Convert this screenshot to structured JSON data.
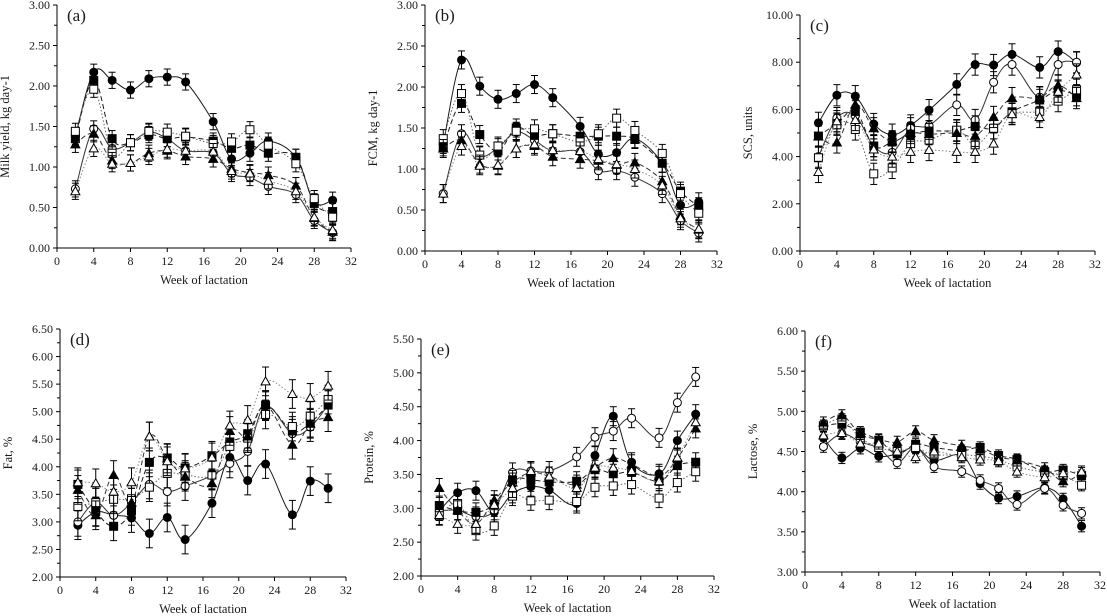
{
  "chart_data": [
    {
      "type": "line",
      "panel_label": "(a)",
      "title": "",
      "xlabel": "Week of lactation",
      "ylabel": "Milk yield, kg day-1",
      "xlim": [
        0,
        32
      ],
      "ylim": [
        0,
        3
      ],
      "xticks": [
        "0",
        "4",
        "8",
        "12",
        "16",
        "20",
        "24",
        "28",
        "32"
      ],
      "yticks": [
        "0.00",
        "0.50",
        "1.00",
        "1.50",
        "2.00",
        "2.50",
        "3.00"
      ],
      "x": [
        2,
        4,
        6,
        8,
        10,
        12,
        14,
        17,
        19,
        21,
        23,
        26,
        28,
        30
      ],
      "series": [
        {
          "name": "filled-circle",
          "values": [
            1.38,
            2.17,
            2.07,
            1.95,
            2.09,
            2.11,
            2.05,
            1.56,
            1.1,
            1.17,
            1.32,
            1.12,
            0.57,
            0.59
          ],
          "error": 0.1
        },
        {
          "name": "open-circle",
          "values": [
            0.73,
            1.47,
            1.23,
            1.3,
            1.43,
            1.35,
            1.2,
            1.17,
            0.92,
            0.87,
            0.76,
            0.66,
            0.34,
            0.19
          ],
          "error": 0.1
        },
        {
          "name": "filled-square",
          "values": [
            1.35,
            2.07,
            1.35,
            1.3,
            1.4,
            1.35,
            1.37,
            1.32,
            1.23,
            1.27,
            1.17,
            1.12,
            0.55,
            0.45
          ],
          "error": 0.1
        },
        {
          "name": "open-square",
          "values": [
            1.44,
            1.96,
            1.17,
            1.3,
            1.44,
            1.43,
            1.38,
            1.29,
            1.31,
            1.46,
            1.27,
            1.04,
            0.61,
            0.38
          ],
          "error": 0.1
        },
        {
          "name": "filled-triangle",
          "values": [
            1.28,
            1.41,
            1.08,
            1.05,
            1.17,
            1.2,
            1.13,
            1.1,
            0.98,
            0.93,
            0.9,
            0.77,
            0.37,
            0.2
          ],
          "error": 0.1
        },
        {
          "name": "open-triangle",
          "values": [
            0.7,
            1.23,
            1.04,
            1.05,
            1.13,
            1.22,
            1.2,
            1.19,
            0.95,
            0.92,
            0.83,
            0.7,
            0.38,
            0.22
          ],
          "error": 0.1
        }
      ]
    },
    {
      "type": "line",
      "panel_label": "(b)",
      "title": "",
      "xlabel": "Week of lactation",
      "ylabel": "FCM, kg day-1",
      "xlim": [
        0,
        32
      ],
      "ylim": [
        0,
        3
      ],
      "xticks": [
        "0",
        "4",
        "8",
        "12",
        "16",
        "20",
        "24",
        "28",
        "32"
      ],
      "yticks": [
        "0.00",
        "0.50",
        "1.00",
        "1.50",
        "2.00",
        "2.50",
        "3.00"
      ],
      "x": [
        2,
        4,
        6,
        8,
        10,
        12,
        14,
        17,
        19,
        21,
        23,
        26,
        28,
        30
      ],
      "series": [
        {
          "name": "filled-circle",
          "values": [
            1.3,
            2.33,
            2.01,
            1.85,
            1.92,
            2.03,
            1.87,
            1.52,
            1.18,
            1.2,
            1.37,
            1.07,
            0.56,
            0.6
          ],
          "error": 0.11
        },
        {
          "name": "open-circle",
          "values": [
            0.7,
            1.43,
            1.16,
            1.26,
            1.45,
            1.35,
            1.22,
            1.21,
            0.98,
            0.98,
            0.9,
            0.7,
            0.37,
            0.22
          ],
          "error": 0.11
        },
        {
          "name": "filled-square",
          "values": [
            1.27,
            1.8,
            1.42,
            1.22,
            1.5,
            1.41,
            1.43,
            1.4,
            1.4,
            1.4,
            1.36,
            1.07,
            0.73,
            0.54
          ],
          "error": 0.11
        },
        {
          "name": "open-square",
          "values": [
            1.37,
            1.92,
            1.17,
            1.28,
            1.46,
            1.49,
            1.43,
            1.33,
            1.43,
            1.62,
            1.47,
            1.19,
            0.7,
            0.46
          ],
          "error": 0.11
        },
        {
          "name": "filled-triangle",
          "values": [
            1.25,
            1.35,
            1.06,
            1.04,
            1.25,
            1.28,
            1.15,
            1.12,
            1.1,
            1.05,
            1.08,
            0.85,
            0.43,
            0.26
          ],
          "error": 0.11
        },
        {
          "name": "open-triangle",
          "values": [
            0.7,
            1.28,
            1.04,
            1.05,
            1.25,
            1.3,
            1.23,
            1.22,
            1.12,
            1.06,
            1.0,
            0.8,
            0.4,
            0.27
          ],
          "error": 0.11
        }
      ]
    },
    {
      "type": "line",
      "panel_label": "(c)",
      "title": "",
      "xlabel": "Week of lactation",
      "ylabel": "SCS, units",
      "xlim": [
        0,
        32
      ],
      "ylim": [
        0,
        10
      ],
      "xticks": [
        "0",
        "4",
        "8",
        "12",
        "16",
        "20",
        "24",
        "28",
        "32"
      ],
      "yticks": [
        "0.00",
        "2.00",
        "4.00",
        "6.00",
        "8.00",
        "10.00"
      ],
      "x": [
        2,
        4,
        6,
        8,
        10,
        12,
        14,
        17,
        19,
        21,
        23,
        26,
        28,
        30
      ],
      "series": [
        {
          "name": "filled-circle",
          "values": [
            5.43,
            6.6,
            6.56,
            5.38,
            4.93,
            5.32,
            5.97,
            7.06,
            7.9,
            7.88,
            8.33,
            7.78,
            8.45,
            7.98
          ],
          "error": 0.45
        },
        {
          "name": "open-circle",
          "values": [
            4.0,
            5.63,
            5.73,
            4.44,
            4.18,
            5.2,
            5.32,
            6.19,
            5.55,
            7.15,
            7.9,
            6.52,
            7.9,
            8.0
          ],
          "error": 0.45
        },
        {
          "name": "filled-square",
          "values": [
            4.87,
            5.4,
            5.92,
            4.45,
            4.62,
            4.95,
            5.08,
            5.1,
            5.28,
            5.2,
            5.9,
            6.4,
            6.8,
            6.6
          ],
          "error": 0.45
        },
        {
          "name": "open-square",
          "values": [
            3.95,
            5.35,
            5.15,
            3.27,
            3.52,
            4.55,
            4.7,
            5.12,
            4.5,
            5.2,
            5.82,
            5.92,
            6.35,
            6.83
          ],
          "error": 0.45
        },
        {
          "name": "filled-triangle",
          "values": [
            4.85,
            4.6,
            6.2,
            5.2,
            4.65,
            5.0,
            4.95,
            5.0,
            4.88,
            5.68,
            6.48,
            6.5,
            7.02,
            6.48
          ],
          "error": 0.45
        },
        {
          "name": "open-triangle",
          "values": [
            3.35,
            5.5,
            5.55,
            4.3,
            4.0,
            4.2,
            4.28,
            4.2,
            4.2,
            4.55,
            5.8,
            5.68,
            6.75,
            7.48
          ],
          "error": 0.45
        }
      ]
    },
    {
      "type": "line",
      "panel_label": "(d)",
      "title": "",
      "xlabel": "Week of lactation",
      "ylabel": "Fat, %",
      "xlim": [
        0,
        32
      ],
      "ylim": [
        2,
        6.5
      ],
      "xticks": [
        "0",
        "4",
        "8",
        "12",
        "16",
        "20",
        "24",
        "28",
        "32"
      ],
      "yticks": [
        "2.00",
        "2.50",
        "3.00",
        "3.50",
        "4.00",
        "4.50",
        "5.00",
        "5.50",
        "6.00",
        "6.50"
      ],
      "x": [
        2,
        4,
        6,
        8,
        10,
        12,
        14,
        17,
        19,
        21,
        23,
        26,
        28,
        30
      ],
      "series": [
        {
          "name": "filled-circle",
          "values": [
            2.94,
            3.18,
            3.12,
            3.07,
            2.79,
            3.08,
            2.68,
            3.34,
            4.17,
            3.75,
            4.05,
            3.13,
            3.74,
            3.61
          ],
          "error": 0.26
        },
        {
          "name": "open-circle",
          "values": [
            3.0,
            3.35,
            3.12,
            3.35,
            3.68,
            3.55,
            3.65,
            3.84,
            4.06,
            4.28,
            5.1,
            4.6,
            4.72,
            5.12
          ],
          "error": 0.26
        },
        {
          "name": "filled-square",
          "values": [
            3.68,
            3.19,
            2.92,
            3.2,
            4.08,
            4.16,
            3.98,
            4.2,
            4.45,
            4.6,
            5.12,
            4.65,
            4.8,
            5.12
          ],
          "error": 0.26
        },
        {
          "name": "open-square",
          "values": [
            3.28,
            3.35,
            3.41,
            3.42,
            3.63,
            3.88,
            3.85,
            3.85,
            4.37,
            4.52,
            4.95,
            4.73,
            4.92,
            5.22
          ],
          "error": 0.26
        },
        {
          "name": "filled-triangle",
          "values": [
            3.58,
            3.12,
            3.85,
            3.35,
            4.55,
            4.15,
            3.82,
            3.7,
            4.65,
            4.55,
            5.12,
            4.4,
            4.78,
            4.9
          ],
          "error": 0.26
        },
        {
          "name": "open-triangle",
          "values": [
            3.72,
            3.7,
            3.55,
            3.72,
            4.55,
            4.1,
            3.97,
            4.17,
            4.75,
            4.85,
            5.55,
            5.32,
            5.25,
            5.47
          ],
          "error": 0.26
        }
      ]
    },
    {
      "type": "line",
      "panel_label": "(e)",
      "title": "",
      "xlabel": "Week of lactation",
      "ylabel": "Protein, %",
      "xlim": [
        0,
        32
      ],
      "ylim": [
        2,
        5.5
      ],
      "xticks": [
        "0",
        "4",
        "8",
        "12",
        "16",
        "20",
        "24",
        "28",
        "32"
      ],
      "yticks": [
        "2.00",
        "2.50",
        "3.00",
        "3.50",
        "4.00",
        "4.50",
        "5.00",
        "5.50"
      ],
      "x": [
        2,
        4,
        6,
        8,
        10,
        12,
        14,
        17,
        19,
        21,
        23,
        26,
        28,
        30
      ],
      "series": [
        {
          "name": "filled-circle",
          "values": [
            2.96,
            3.23,
            3.26,
            2.94,
            3.22,
            3.32,
            3.27,
            3.07,
            3.78,
            4.36,
            3.68,
            3.51,
            4.0,
            4.39
          ],
          "error": 0.14
        },
        {
          "name": "open-circle",
          "values": [
            2.96,
            2.97,
            2.88,
            2.97,
            3.53,
            3.55,
            3.55,
            3.76,
            4.05,
            4.14,
            4.33,
            4.04,
            4.56,
            4.94
          ],
          "error": 0.14
        },
        {
          "name": "filled-square",
          "values": [
            3.04,
            2.97,
            2.94,
            3.06,
            3.42,
            3.42,
            3.39,
            3.4,
            3.57,
            3.51,
            3.53,
            3.4,
            3.63,
            3.68
          ],
          "error": 0.14
        },
        {
          "name": "open-square",
          "values": [
            2.89,
            3.07,
            2.67,
            2.74,
            3.18,
            3.11,
            3.12,
            3.1,
            3.31,
            3.33,
            3.35,
            3.15,
            3.38,
            3.54
          ],
          "error": 0.14
        },
        {
          "name": "filled-triangle",
          "values": [
            3.3,
            2.97,
            2.77,
            3.12,
            3.38,
            3.53,
            3.47,
            3.35,
            3.6,
            3.74,
            3.65,
            3.48,
            3.74,
            4.18
          ],
          "error": 0.14
        },
        {
          "name": "open-triangle",
          "values": [
            2.9,
            2.77,
            2.77,
            3.05,
            3.3,
            3.55,
            3.47,
            3.3,
            3.6,
            3.6,
            3.55,
            3.4,
            3.75,
            4.27
          ],
          "error": 0.14
        }
      ]
    },
    {
      "type": "line",
      "panel_label": "(f)",
      "title": "",
      "xlabel": "Week of lactation",
      "ylabel": "Lactose, %",
      "xlim": [
        0,
        32
      ],
      "ylim": [
        3,
        6
      ],
      "xticks": [
        "0",
        "4",
        "8",
        "12",
        "16",
        "20",
        "24",
        "28",
        "32"
      ],
      "yticks": [
        "3.00",
        "3.50",
        "4.00",
        "4.50",
        "5.00",
        "5.50",
        "6.00"
      ],
      "x": [
        2,
        4,
        6,
        8,
        10,
        12,
        14,
        17,
        19,
        21,
        23,
        26,
        28,
        30
      ],
      "series": [
        {
          "name": "filled-circle",
          "values": [
            4.67,
            4.42,
            4.54,
            4.44,
            4.47,
            4.55,
            4.39,
            4.45,
            4.1,
            3.92,
            3.94,
            4.05,
            3.91,
            3.57
          ],
          "error": 0.07
        },
        {
          "name": "open-circle",
          "values": [
            4.56,
            4.72,
            4.62,
            4.54,
            4.36,
            4.55,
            4.31,
            4.25,
            4.14,
            4.04,
            3.84,
            4.04,
            3.83,
            3.73
          ],
          "error": 0.07
        },
        {
          "name": "filled-square",
          "values": [
            4.82,
            4.84,
            4.74,
            4.64,
            4.47,
            4.59,
            4.55,
            4.51,
            4.55,
            4.45,
            4.4,
            4.25,
            4.27,
            4.2
          ],
          "error": 0.07
        },
        {
          "name": "open-square",
          "values": [
            4.82,
            4.9,
            4.67,
            4.55,
            4.51,
            4.54,
            4.46,
            4.46,
            4.44,
            4.4,
            4.31,
            4.24,
            4.2,
            4.08
          ],
          "error": 0.07
        },
        {
          "name": "filled-triangle",
          "values": [
            4.86,
            4.95,
            4.72,
            4.65,
            4.62,
            4.75,
            4.64,
            4.57,
            4.53,
            4.43,
            4.39,
            4.29,
            4.13,
            4.23
          ],
          "error": 0.07
        },
        {
          "name": "open-triangle",
          "values": [
            4.7,
            4.73,
            4.6,
            4.6,
            4.5,
            4.43,
            4.5,
            4.43,
            4.4,
            4.38,
            4.25,
            4.18,
            4.23,
            4.25
          ],
          "error": 0.07
        }
      ]
    }
  ],
  "series_styles": {
    "filled-circle": {
      "marker": "circle",
      "fill": "#000000",
      "line": "solid",
      "color": "#1a1a1a"
    },
    "open-circle": {
      "marker": "circle",
      "fill": "#ffffff",
      "line": "solid",
      "color": "#333333"
    },
    "filled-square": {
      "marker": "square",
      "fill": "#000000",
      "line": "dashed",
      "color": "#1a1a1a"
    },
    "open-square": {
      "marker": "square",
      "fill": "#ffffff",
      "line": "dotted",
      "color": "#666666"
    },
    "filled-triangle": {
      "marker": "triangle",
      "fill": "#000000",
      "line": "dashed",
      "color": "#333333"
    },
    "open-triangle": {
      "marker": "triangle",
      "fill": "#ffffff",
      "line": "dotted",
      "color": "#888888"
    }
  }
}
